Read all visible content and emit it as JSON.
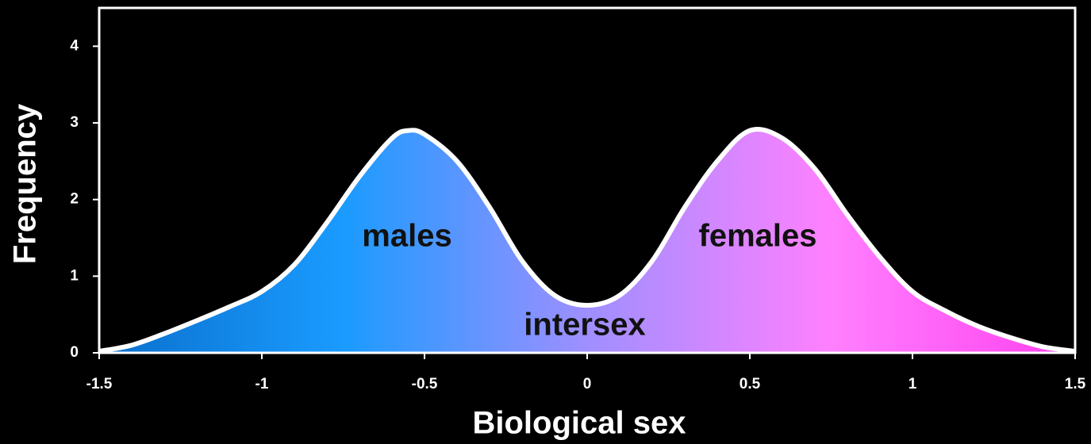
{
  "chart_data": {
    "type": "area",
    "x_label": "Biological sex",
    "y_label": "Frequency",
    "x": [
      -1.5,
      -1.4,
      -1.3,
      -1.2,
      -1.1,
      -1.0,
      -0.9,
      -0.8,
      -0.7,
      -0.6,
      -0.55,
      -0.5,
      -0.4,
      -0.3,
      -0.2,
      -0.1,
      0,
      0.1,
      0.2,
      0.3,
      0.4,
      0.5,
      0.6,
      0.7,
      0.8,
      0.9,
      1.0,
      1.1,
      1.2,
      1.3,
      1.4,
      1.5
    ],
    "values": [
      0.02,
      0.1,
      0.25,
      0.42,
      0.6,
      0.8,
      1.15,
      1.7,
      2.3,
      2.8,
      2.9,
      2.85,
      2.5,
      1.9,
      1.2,
      0.75,
      0.62,
      0.75,
      1.2,
      1.9,
      2.5,
      2.9,
      2.8,
      2.4,
      1.8,
      1.25,
      0.8,
      0.55,
      0.35,
      0.2,
      0.08,
      0.02
    ],
    "gradient": [
      "#0a6fcc",
      "#1a9bff",
      "#9f8fff",
      "#ff80ff",
      "#ff40ee"
    ],
    "line_color": "#ffffff",
    "annotations": [
      "males",
      "females",
      "intersex"
    ],
    "xlim": [
      -1.5,
      1.5
    ],
    "xticks": [
      -1.5,
      -1,
      -0.5,
      0,
      0.5,
      1,
      1.5
    ],
    "ylim": [
      0,
      4.5
    ],
    "yticks": [
      0,
      1,
      2,
      3,
      4
    ]
  }
}
